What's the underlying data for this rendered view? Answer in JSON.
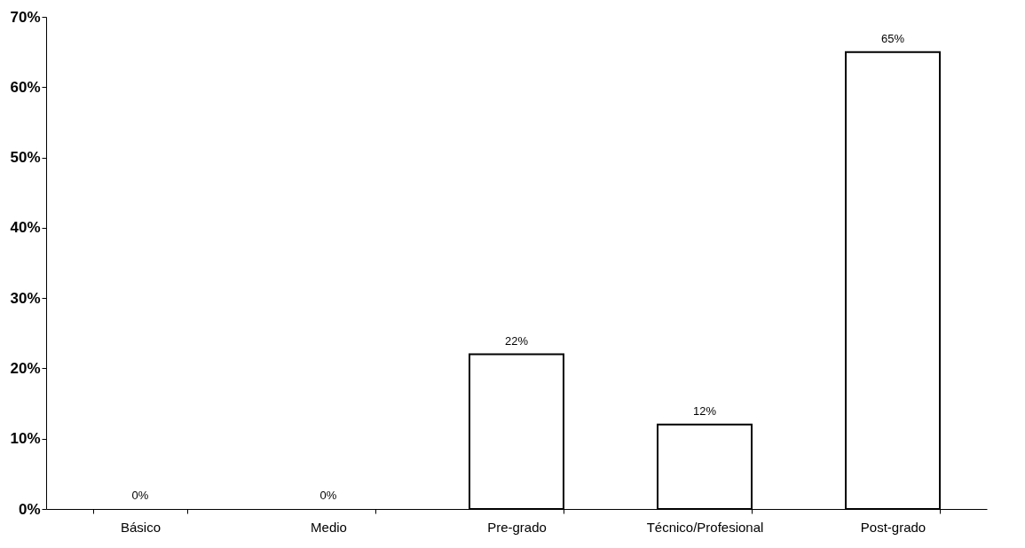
{
  "chart_data": {
    "type": "bar",
    "categories": [
      "Básico",
      "Medio",
      "Pre-grado",
      "Técnico/Profesional",
      "Post-grado"
    ],
    "values": [
      0,
      0,
      22,
      12,
      65
    ],
    "value_labels": [
      "0%",
      "0%",
      "22%",
      "12%",
      "65%"
    ],
    "color": "#ffffff",
    "ylim": [
      0,
      70
    ],
    "yticks": [
      {
        "value": 0,
        "label": "0%"
      },
      {
        "value": 10,
        "label": "10%"
      },
      {
        "value": 20,
        "label": "20%"
      },
      {
        "value": 30,
        "label": "30%"
      },
      {
        "value": 40,
        "label": "40%"
      },
      {
        "value": 50,
        "label": "50%"
      },
      {
        "value": 60,
        "label": "60%"
      },
      {
        "value": 70,
        "label": "70%"
      }
    ],
    "grid": false
  }
}
